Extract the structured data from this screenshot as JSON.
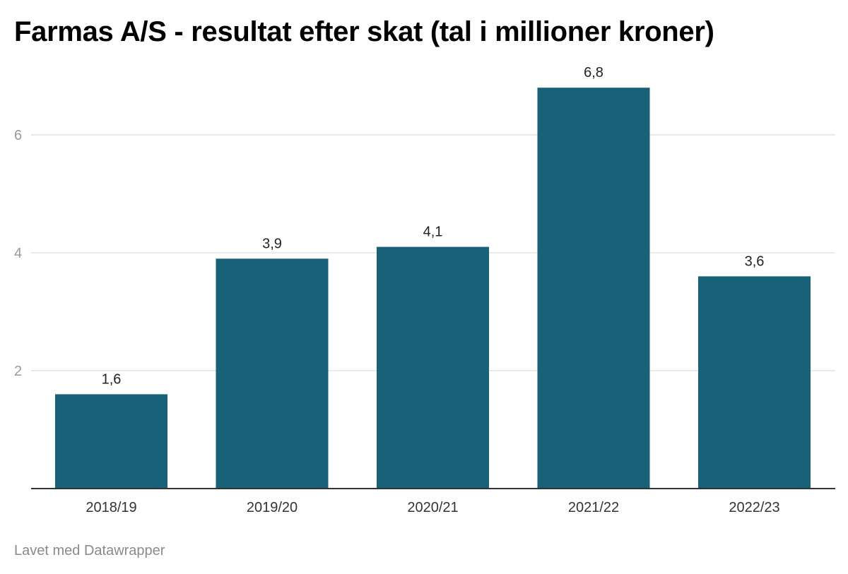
{
  "chart_data": {
    "type": "bar",
    "title": "Farmas A/S - resultat efter skat (tal i millioner kroner)",
    "categories": [
      "2018/19",
      "2019/20",
      "2020/21",
      "2021/22",
      "2022/23"
    ],
    "values": [
      1.6,
      3.9,
      4.1,
      6.8,
      3.6
    ],
    "value_labels": [
      "1,6",
      "3,9",
      "4,1",
      "6,8",
      "3,6"
    ],
    "yticks": [
      2,
      4,
      6
    ],
    "ylim": [
      0,
      6.8
    ],
    "grid": true,
    "legend": "none",
    "colors": {
      "bar": "#176179",
      "grid": "#e2e2e2",
      "axis": "#333333",
      "y_tick_text": "#999999",
      "x_tick_text": "#333333",
      "value_text": "#222222"
    }
  },
  "footer": {
    "credit": "Lavet med Datawrapper"
  }
}
